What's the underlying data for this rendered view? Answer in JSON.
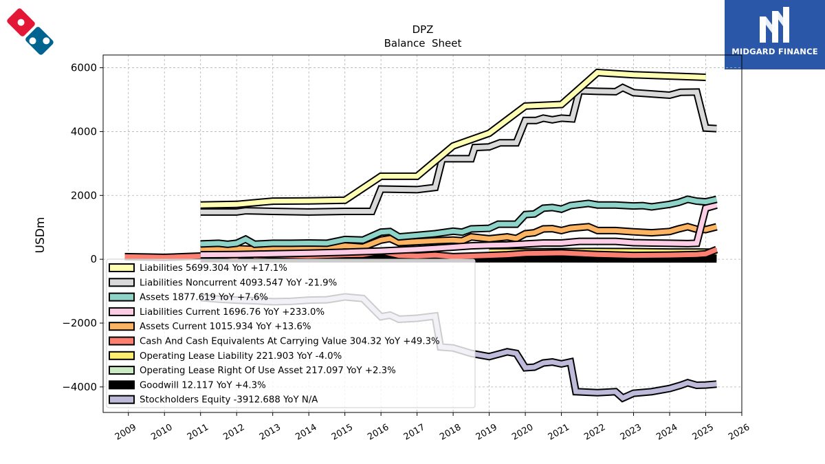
{
  "brand_logo": {
    "icon": "dominos-domino-logo",
    "colors": {
      "red": "#e31837",
      "blue": "#006491"
    }
  },
  "partner_logo": {
    "name": "MIDGARD FINANCE",
    "background": "#2a57a8",
    "icon": "midgard-monogram-icon"
  },
  "chart_data": {
    "type": "line",
    "title": "DPZ",
    "subtitle": "Balance  Sheet",
    "xlabel": "",
    "ylabel": "USDm",
    "xlim": [
      2008.3,
      2026.0
    ],
    "ylim": [
      -4800,
      6400
    ],
    "x_ticks": [
      "2009",
      "2010",
      "2011",
      "2012",
      "2013",
      "2014",
      "2015",
      "2016",
      "2017",
      "2018",
      "2019",
      "2020",
      "2021",
      "2022",
      "2023",
      "2024",
      "2025",
      "2026"
    ],
    "y_ticks": [
      -4000,
      -2000,
      0,
      2000,
      4000,
      6000
    ],
    "y_tick_labels": [
      "−4000",
      "−2000",
      "0",
      "2000",
      "4000",
      "6000"
    ],
    "grid": true,
    "legend_position": "lower-left",
    "series": [
      {
        "name": "Liabilities",
        "legend": "Liabilities  5699.304 YoY +17.1%",
        "color": "#ffffb3",
        "points": [
          [
            2011,
            1700
          ],
          [
            2012,
            1720
          ],
          [
            2013,
            1820
          ],
          [
            2014,
            1830
          ],
          [
            2015,
            1850
          ],
          [
            2016,
            2600
          ],
          [
            2017,
            2600
          ],
          [
            2018,
            3550
          ],
          [
            2019,
            3950
          ],
          [
            2020,
            4800
          ],
          [
            2021,
            4850
          ],
          [
            2022,
            5850
          ],
          [
            2023,
            5780
          ],
          [
            2025,
            5699
          ]
        ]
      },
      {
        "name": "Liabilities Noncurrent",
        "legend": "Liabilities Noncurrent  4093.547 YoY -21.9%",
        "color": "#d9d9d9",
        "points": [
          [
            2011,
            1480
          ],
          [
            2012,
            1480
          ],
          [
            2012.25,
            1520
          ],
          [
            2013,
            1500
          ],
          [
            2014,
            1480
          ],
          [
            2015,
            1500
          ],
          [
            2015.75,
            1500
          ],
          [
            2016,
            2200
          ],
          [
            2017,
            2180
          ],
          [
            2017.5,
            2250
          ],
          [
            2017.7,
            3150
          ],
          [
            2018,
            3150
          ],
          [
            2018.5,
            3150
          ],
          [
            2018.6,
            3500
          ],
          [
            2019,
            3520
          ],
          [
            2019.3,
            3650
          ],
          [
            2019.75,
            3650
          ],
          [
            2020,
            4350
          ],
          [
            2020.3,
            4350
          ],
          [
            2020.5,
            4420
          ],
          [
            2020.75,
            4370
          ],
          [
            2021,
            4420
          ],
          [
            2021.3,
            4400
          ],
          [
            2021.5,
            5280
          ],
          [
            2022,
            5260
          ],
          [
            2022.5,
            5250
          ],
          [
            2022.7,
            5380
          ],
          [
            2023,
            5220
          ],
          [
            2023.5,
            5180
          ],
          [
            2024,
            5140
          ],
          [
            2024.3,
            5230
          ],
          [
            2024.75,
            5240
          ],
          [
            2025,
            4110
          ],
          [
            2025.3,
            4093
          ]
        ]
      },
      {
        "name": "Assets",
        "legend": "Assets  1877.619 YoY +7.6%",
        "color": "#8dd3c7",
        "points": [
          [
            2011,
            480
          ],
          [
            2011.5,
            500
          ],
          [
            2011.75,
            470
          ],
          [
            2012,
            500
          ],
          [
            2012.25,
            630
          ],
          [
            2012.5,
            470
          ],
          [
            2013,
            500
          ],
          [
            2013.5,
            500
          ],
          [
            2014,
            510
          ],
          [
            2014.5,
            500
          ],
          [
            2015,
            620
          ],
          [
            2015.5,
            600
          ],
          [
            2016,
            850
          ],
          [
            2016.25,
            870
          ],
          [
            2016.5,
            700
          ],
          [
            2017,
            750
          ],
          [
            2017.5,
            800
          ],
          [
            2018,
            880
          ],
          [
            2018.25,
            850
          ],
          [
            2018.5,
            950
          ],
          [
            2019,
            970
          ],
          [
            2019.25,
            1100
          ],
          [
            2019.75,
            1100
          ],
          [
            2020,
            1400
          ],
          [
            2020.25,
            1420
          ],
          [
            2020.5,
            1600
          ],
          [
            2020.75,
            1620
          ],
          [
            2021,
            1570
          ],
          [
            2021.25,
            1680
          ],
          [
            2021.75,
            1750
          ],
          [
            2022,
            1700
          ],
          [
            2022.5,
            1700
          ],
          [
            2023,
            1670
          ],
          [
            2023.25,
            1680
          ],
          [
            2023.5,
            1640
          ],
          [
            2024,
            1720
          ],
          [
            2024.25,
            1780
          ],
          [
            2024.5,
            1880
          ],
          [
            2024.75,
            1820
          ],
          [
            2025,
            1800
          ],
          [
            2025.3,
            1878
          ]
        ]
      },
      {
        "name": "Liabilities Current",
        "legend": "Liabilities Current  1696.76 YoY +233.0%",
        "color": "#fccde5",
        "points": [
          [
            2011,
            140
          ],
          [
            2012,
            150
          ],
          [
            2013,
            170
          ],
          [
            2014,
            190
          ],
          [
            2015,
            220
          ],
          [
            2016,
            260
          ],
          [
            2017,
            310
          ],
          [
            2018,
            380
          ],
          [
            2018.5,
            420
          ],
          [
            2019,
            440
          ],
          [
            2019.5,
            450
          ],
          [
            2020,
            480
          ],
          [
            2020.5,
            510
          ],
          [
            2021,
            510
          ],
          [
            2021.5,
            560
          ],
          [
            2022,
            560
          ],
          [
            2022.5,
            560
          ],
          [
            2023,
            520
          ],
          [
            2023.5,
            510
          ],
          [
            2024,
            500
          ],
          [
            2024.5,
            490
          ],
          [
            2024.75,
            500
          ],
          [
            2025,
            1600
          ],
          [
            2025.3,
            1697
          ]
        ]
      },
      {
        "name": "Assets Current",
        "legend": "Assets Current  1015.934 YoY +13.6%",
        "color": "#fdb462",
        "points": [
          [
            2011,
            300
          ],
          [
            2011.5,
            320
          ],
          [
            2012,
            330
          ],
          [
            2012.5,
            310
          ],
          [
            2013,
            330
          ],
          [
            2014,
            340
          ],
          [
            2015,
            420
          ],
          [
            2015.5,
            380
          ],
          [
            2016,
            600
          ],
          [
            2016.25,
            650
          ],
          [
            2016.5,
            520
          ],
          [
            2017,
            550
          ],
          [
            2017.5,
            580
          ],
          [
            2018,
            600
          ],
          [
            2018.25,
            580
          ],
          [
            2018.5,
            700
          ],
          [
            2019,
            640
          ],
          [
            2019.5,
            700
          ],
          [
            2019.75,
            650
          ],
          [
            2020,
            800
          ],
          [
            2020.25,
            830
          ],
          [
            2020.5,
            950
          ],
          [
            2020.75,
            960
          ],
          [
            2021,
            900
          ],
          [
            2021.25,
            970
          ],
          [
            2021.75,
            1020
          ],
          [
            2022,
            900
          ],
          [
            2022.5,
            900
          ],
          [
            2023,
            860
          ],
          [
            2023.5,
            830
          ],
          [
            2024,
            870
          ],
          [
            2024.25,
            950
          ],
          [
            2024.5,
            1020
          ],
          [
            2024.75,
            940
          ],
          [
            2025,
            930
          ],
          [
            2025.3,
            1016
          ]
        ]
      },
      {
        "name": "Cash And Cash Equivalents At Carrying Value",
        "legend": "Cash And Cash Equivalents At Carrying Value  304.32 YoY +49.3%",
        "color": "#fb8072",
        "points": [
          [
            2008.9,
            80
          ],
          [
            2009.5,
            70
          ],
          [
            2010,
            60
          ],
          [
            2011,
            100
          ],
          [
            2011.5,
            120
          ],
          [
            2012,
            80
          ],
          [
            2012.25,
            270
          ],
          [
            2012.5,
            100
          ],
          [
            2013,
            130
          ],
          [
            2014,
            100
          ],
          [
            2015,
            140
          ],
          [
            2015.5,
            150
          ],
          [
            2016,
            250
          ],
          [
            2016.5,
            120
          ],
          [
            2017,
            100
          ],
          [
            2017.5,
            130
          ],
          [
            2018,
            80
          ],
          [
            2018.5,
            100
          ],
          [
            2019,
            120
          ],
          [
            2019.5,
            140
          ],
          [
            2020,
            180
          ],
          [
            2021,
            200
          ],
          [
            2022,
            150
          ],
          [
            2023,
            120
          ],
          [
            2024,
            130
          ],
          [
            2024.75,
            150
          ],
          [
            2025,
            170
          ],
          [
            2025.3,
            304
          ]
        ]
      },
      {
        "name": "Operating Lease Liability",
        "legend": "Operating Lease Liability  221.903 YoY -4.0%",
        "color": "#ffed6f",
        "points": [
          [
            2019,
            230
          ],
          [
            2020,
            235
          ],
          [
            2021,
            240
          ],
          [
            2022,
            245
          ],
          [
            2023,
            240
          ],
          [
            2024,
            228
          ],
          [
            2025,
            225
          ],
          [
            2025.3,
            222
          ]
        ]
      },
      {
        "name": "Operating Lease Right Of Use Asset",
        "legend": "Operating Lease Right Of Use Asset  217.097 YoY +2.3%",
        "color": "#ccebc5",
        "points": [
          [
            2019,
            200
          ],
          [
            2020,
            210
          ],
          [
            2021,
            215
          ],
          [
            2022,
            215
          ],
          [
            2023,
            212
          ],
          [
            2024,
            210
          ],
          [
            2025,
            212
          ],
          [
            2025.3,
            217
          ]
        ]
      },
      {
        "name": "Goodwill",
        "legend": "Goodwill  12.117 YoY +4.3%",
        "color": "#000000",
        "points": [
          [
            2011,
            18
          ],
          [
            2015,
            17
          ],
          [
            2020,
            15
          ],
          [
            2025.3,
            12
          ]
        ]
      },
      {
        "name": "Stockholders Equity",
        "legend": "Stockholders Equity  -3912.688 YoY N/A",
        "color": "#bebada",
        "points": [
          [
            2011,
            -1200
          ],
          [
            2011.5,
            -1250
          ],
          [
            2012,
            -1280
          ],
          [
            2012.5,
            -1300
          ],
          [
            2013,
            -1330
          ],
          [
            2013.5,
            -1320
          ],
          [
            2014,
            -1280
          ],
          [
            2014.5,
            -1270
          ],
          [
            2015,
            -1180
          ],
          [
            2015.5,
            -1230
          ],
          [
            2016,
            -1800
          ],
          [
            2016.25,
            -1750
          ],
          [
            2016.5,
            -1880
          ],
          [
            2017,
            -1850
          ],
          [
            2017.5,
            -1780
          ],
          [
            2017.65,
            -2750
          ],
          [
            2018,
            -2780
          ],
          [
            2018.5,
            -2950
          ],
          [
            2019,
            -3050
          ],
          [
            2019.5,
            -2900
          ],
          [
            2019.75,
            -2950
          ],
          [
            2020,
            -3400
          ],
          [
            2020.25,
            -3380
          ],
          [
            2020.5,
            -3250
          ],
          [
            2020.75,
            -3220
          ],
          [
            2021,
            -3280
          ],
          [
            2021.25,
            -3220
          ],
          [
            2021.4,
            -4150
          ],
          [
            2022,
            -4180
          ],
          [
            2022.5,
            -4150
          ],
          [
            2022.7,
            -4350
          ],
          [
            2023,
            -4200
          ],
          [
            2023.5,
            -4150
          ],
          [
            2024,
            -4050
          ],
          [
            2024.3,
            -3950
          ],
          [
            2024.5,
            -3870
          ],
          [
            2024.75,
            -3950
          ],
          [
            2025,
            -3940
          ],
          [
            2025.3,
            -3913
          ]
        ]
      }
    ]
  }
}
